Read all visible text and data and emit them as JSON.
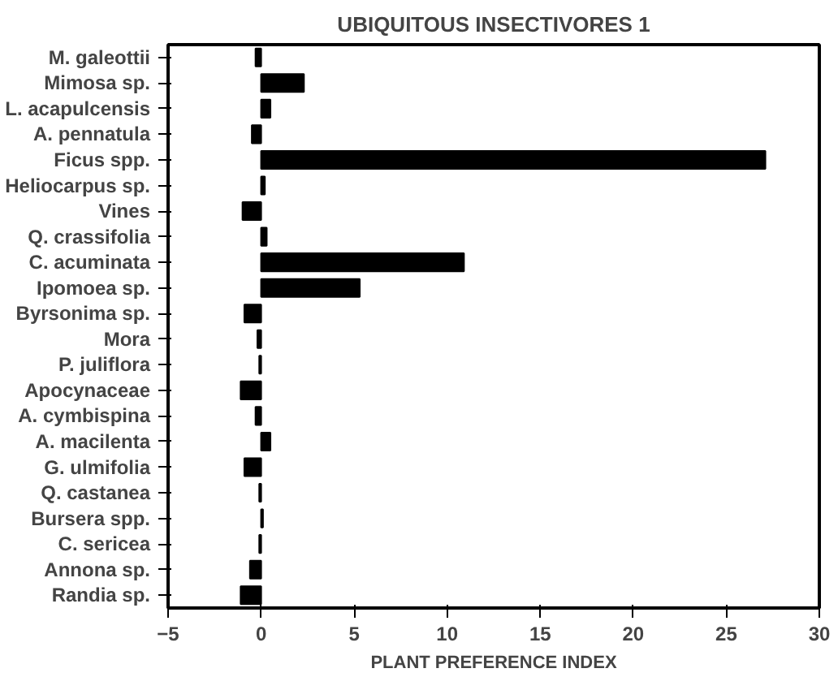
{
  "chart_data": {
    "type": "bar",
    "orientation": "horizontal",
    "title": "UBIQUITOUS INSECTIVORES 1",
    "xlabel": "PLANT PREFERENCE INDEX",
    "categories": [
      "M. galeottii",
      "Mimosa sp.",
      "L. acapulcensis",
      "A. pennatula",
      "Ficus spp.",
      "Heliocarpus sp.",
      "Vines",
      "Q. crassifolia",
      "C. acuminata",
      "Ipomoea sp.",
      "Byrsonima sp.",
      "Mora",
      "P. juliflora",
      "Apocynaceae",
      "A. cymbispina",
      "A. macilenta",
      "G. ulmifolia",
      "Q. castanea",
      "Bursera spp.",
      "C. sericea",
      "Annona sp.",
      "Randia sp."
    ],
    "values": [
      -0.3,
      2.3,
      0.5,
      -0.5,
      27.1,
      0.2,
      -1.0,
      0.3,
      10.9,
      5.3,
      -0.9,
      -0.2,
      -0.1,
      -1.1,
      -0.3,
      0.5,
      -0.9,
      -0.1,
      0.1,
      -0.1,
      -0.6,
      -1.1
    ],
    "color": "#000000",
    "xlim": [
      -5,
      30
    ],
    "xticks": [
      -5,
      0,
      5,
      10,
      15,
      20,
      25,
      30
    ],
    "grid": false
  }
}
